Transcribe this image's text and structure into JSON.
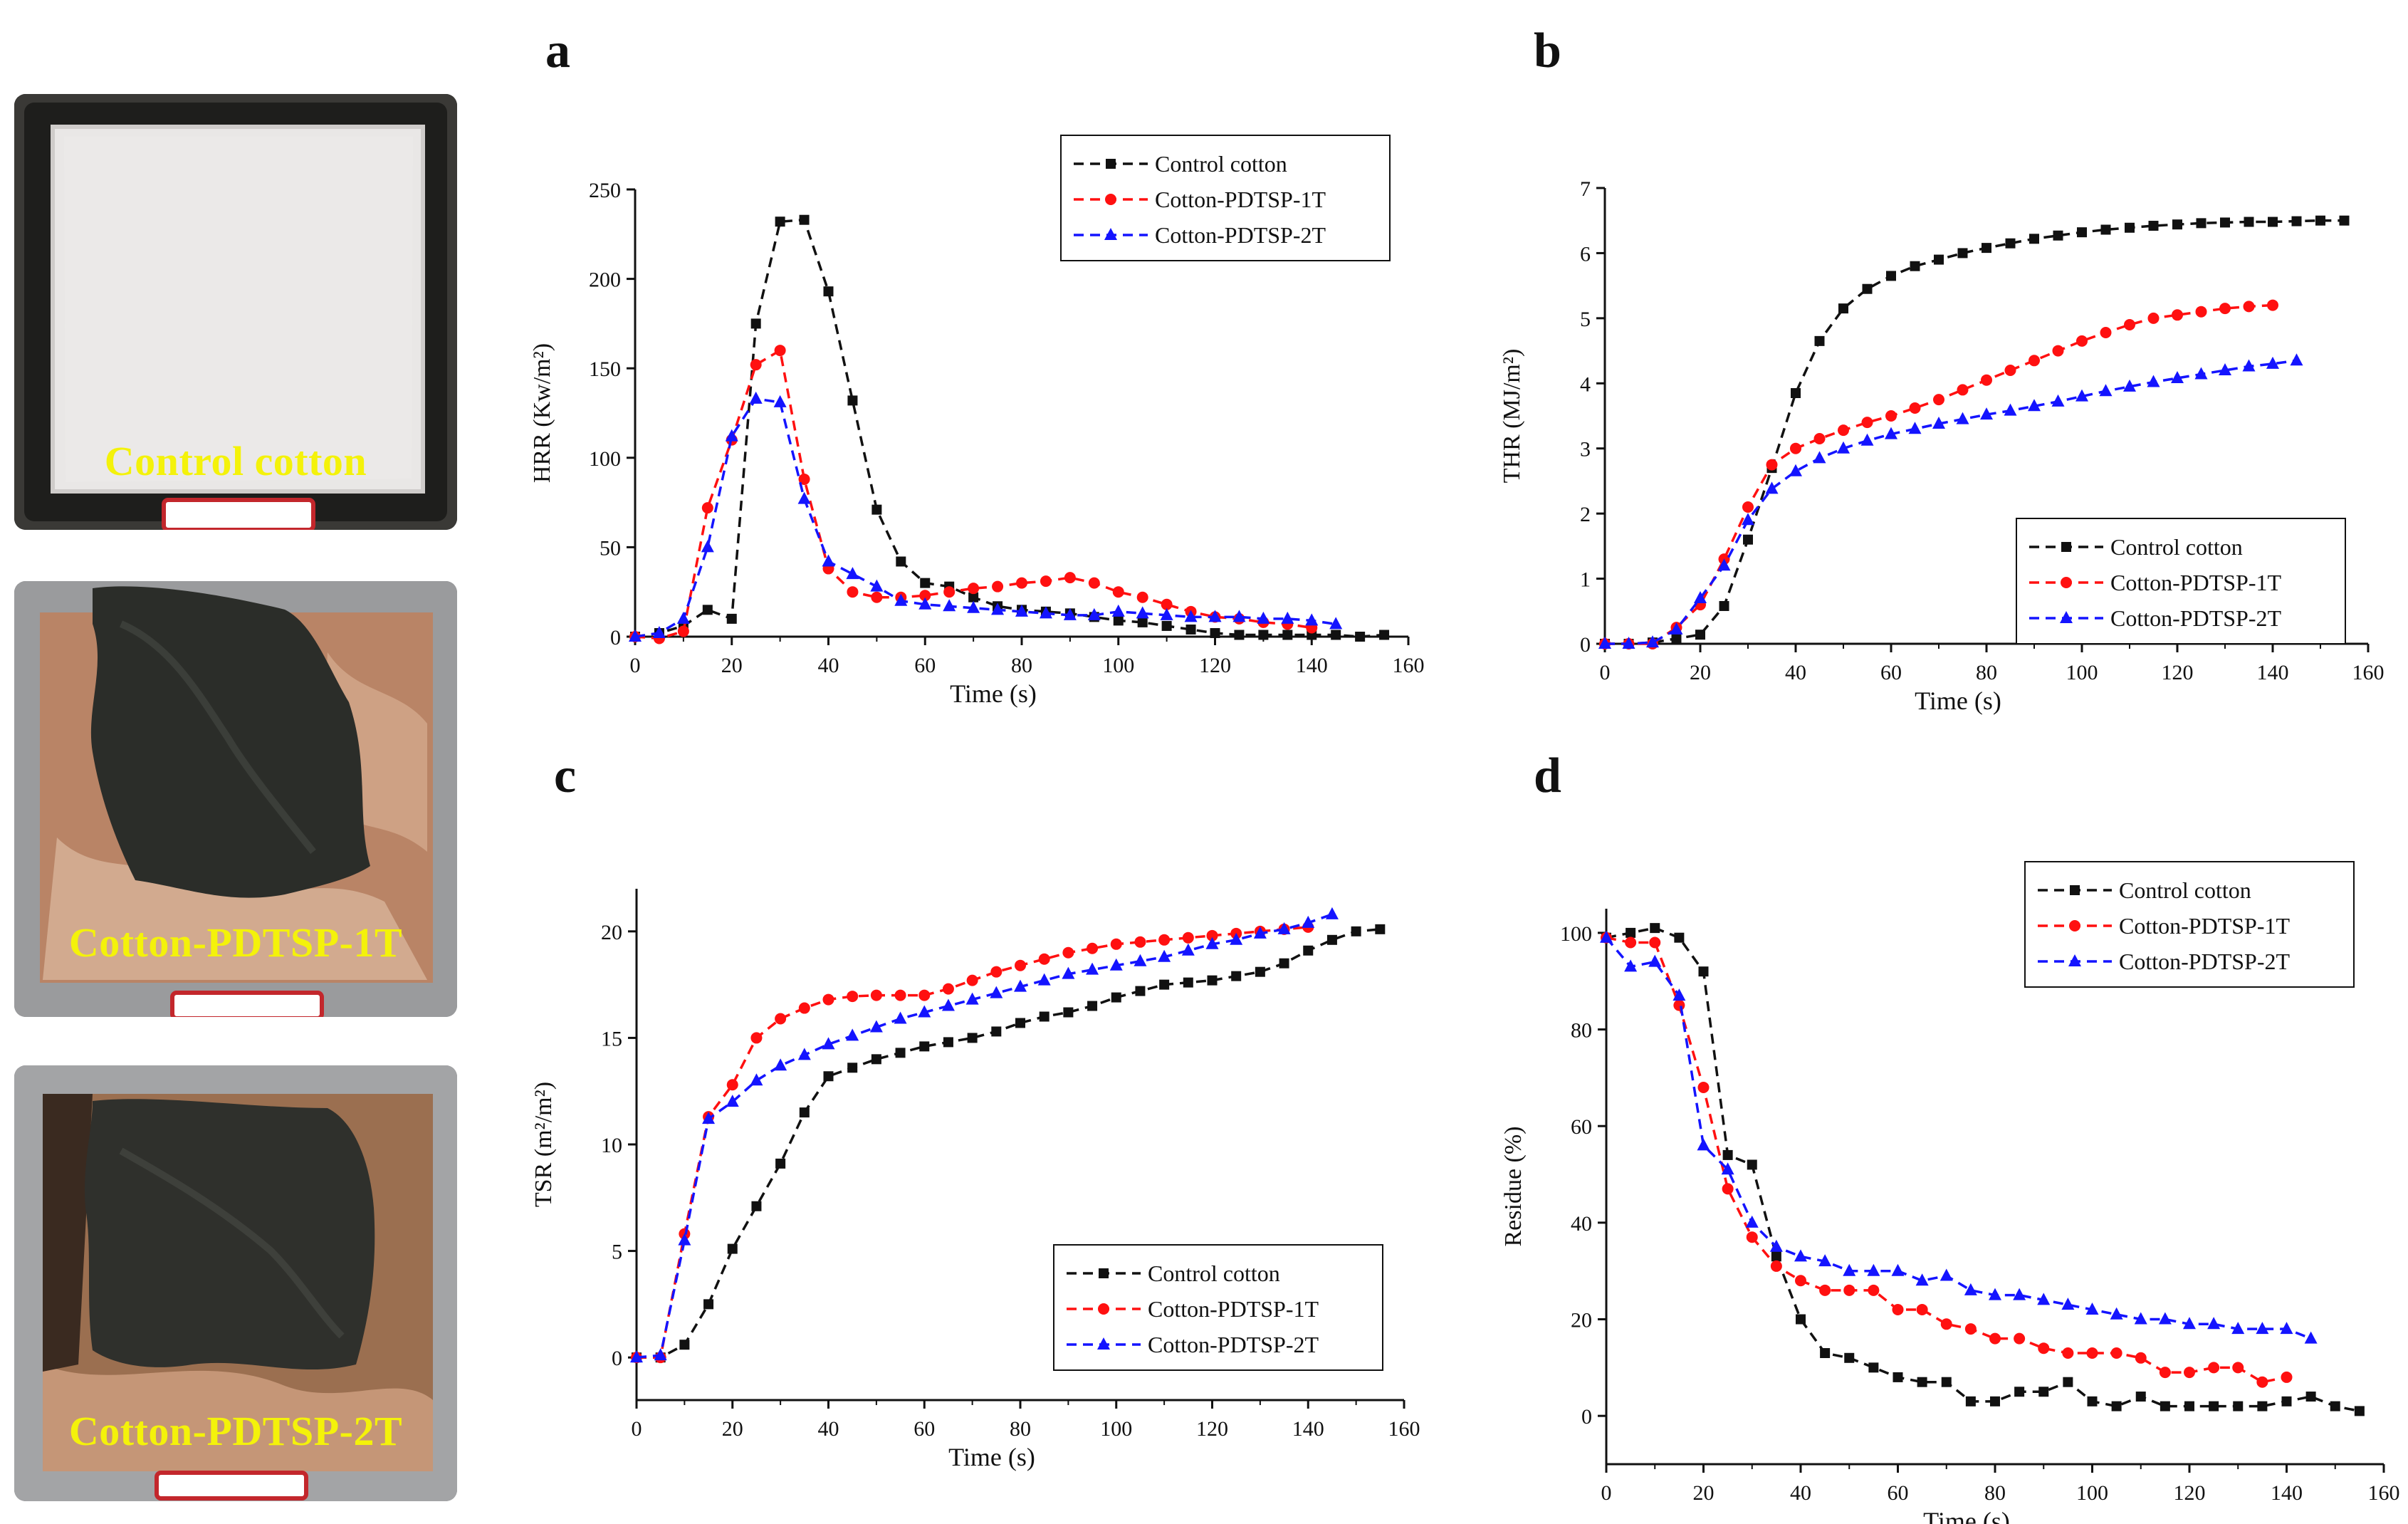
{
  "photos": [
    {
      "label": "Control cotton"
    },
    {
      "label": "Cotton-PDTSP-1T"
    },
    {
      "label": "Cotton-PDTSP-2T"
    }
  ],
  "colors": {
    "control": "#111111",
    "t1": "#ff1010",
    "t2": "#1414ff",
    "label": "#f4f20a"
  },
  "icons": {
    "control": "square-marker-icon",
    "t1": "circle-marker-icon",
    "t2": "triangle-marker-icon"
  },
  "chart_data": [
    {
      "panel": "a",
      "type": "line",
      "xlabel": "Time (s)",
      "ylabel": "HRR (Kw/m²)",
      "xlim": [
        0,
        160
      ],
      "ylim": [
        0,
        250
      ],
      "xticks": [
        0,
        20,
        40,
        60,
        80,
        100,
        120,
        140,
        160
      ],
      "yticks": [
        0,
        50,
        100,
        150,
        200,
        250
      ],
      "legend_position": "top-right",
      "series": [
        {
          "name": "Control cotton",
          "marker": "square",
          "x": [
            0,
            5,
            10,
            15,
            20,
            25,
            30,
            35,
            40,
            45,
            50,
            55,
            60,
            65,
            70,
            75,
            80,
            85,
            90,
            95,
            100,
            105,
            110,
            115,
            120,
            125,
            130,
            135,
            140,
            145,
            150,
            155
          ],
          "y": [
            0,
            2,
            6,
            15,
            10,
            175,
            232,
            233,
            193,
            132,
            71,
            42,
            30,
            28,
            22,
            17,
            15,
            14,
            13,
            11,
            9,
            8,
            6,
            4,
            2,
            1,
            1,
            1,
            1,
            1,
            0,
            1
          ]
        },
        {
          "name": "Cotton-PDTSP-1T",
          "marker": "circle",
          "x": [
            0,
            5,
            10,
            15,
            20,
            25,
            30,
            35,
            40,
            45,
            50,
            55,
            60,
            65,
            70,
            75,
            80,
            85,
            90,
            95,
            100,
            105,
            110,
            115,
            120,
            125,
            130,
            135,
            140
          ],
          "y": [
            0,
            -1,
            3,
            72,
            110,
            152,
            160,
            88,
            38,
            25,
            22,
            22,
            23,
            25,
            27,
            28,
            30,
            31,
            33,
            30,
            25,
            22,
            18,
            14,
            11,
            10,
            8,
            7,
            5
          ]
        },
        {
          "name": "Cotton-PDTSP-2T",
          "marker": "triangle",
          "x": [
            0,
            5,
            10,
            15,
            20,
            25,
            30,
            35,
            40,
            45,
            50,
            55,
            60,
            65,
            70,
            75,
            80,
            85,
            90,
            95,
            100,
            105,
            110,
            115,
            120,
            125,
            130,
            135,
            140,
            145
          ],
          "y": [
            0,
            2,
            10,
            50,
            112,
            133,
            131,
            77,
            42,
            35,
            28,
            20,
            18,
            17,
            16,
            15,
            14,
            13,
            12,
            12,
            14,
            13,
            12,
            11,
            11,
            11,
            10,
            10,
            9,
            7
          ]
        }
      ]
    },
    {
      "panel": "b",
      "type": "line",
      "xlabel": "Time (s)",
      "ylabel": "THR (MJ/m²)",
      "xlim": [
        0,
        160
      ],
      "ylim": [
        0,
        7
      ],
      "xticks": [
        0,
        20,
        40,
        60,
        80,
        100,
        120,
        140,
        160
      ],
      "yticks": [
        0,
        1,
        2,
        3,
        4,
        5,
        6,
        7
      ],
      "legend_position": "bottom-right",
      "series": [
        {
          "name": "Control cotton",
          "marker": "square",
          "x": [
            0,
            5,
            10,
            15,
            20,
            25,
            30,
            35,
            40,
            45,
            50,
            55,
            60,
            65,
            70,
            75,
            80,
            85,
            90,
            95,
            100,
            105,
            110,
            115,
            120,
            125,
            130,
            135,
            140,
            145,
            150,
            155
          ],
          "y": [
            0,
            0,
            0.02,
            0.08,
            0.14,
            0.58,
            1.6,
            2.7,
            3.85,
            4.65,
            5.15,
            5.45,
            5.65,
            5.8,
            5.9,
            6.0,
            6.08,
            6.15,
            6.22,
            6.27,
            6.32,
            6.36,
            6.39,
            6.42,
            6.44,
            6.46,
            6.47,
            6.48,
            6.48,
            6.49,
            6.5,
            6.5
          ]
        },
        {
          "name": "Cotton-PDTSP-1T",
          "marker": "circle",
          "x": [
            0,
            5,
            10,
            15,
            20,
            25,
            30,
            35,
            40,
            45,
            50,
            55,
            60,
            65,
            70,
            75,
            80,
            85,
            90,
            95,
            100,
            105,
            110,
            115,
            120,
            125,
            130,
            135,
            140
          ],
          "y": [
            0,
            0,
            0,
            0.25,
            0.6,
            1.3,
            2.1,
            2.75,
            3.0,
            3.15,
            3.28,
            3.4,
            3.5,
            3.62,
            3.75,
            3.9,
            4.05,
            4.2,
            4.35,
            4.5,
            4.65,
            4.78,
            4.9,
            5.0,
            5.05,
            5.1,
            5.15,
            5.18,
            5.2
          ]
        },
        {
          "name": "Cotton-PDTSP-2T",
          "marker": "triangle",
          "x": [
            0,
            5,
            10,
            15,
            20,
            25,
            30,
            35,
            40,
            45,
            50,
            55,
            60,
            65,
            70,
            75,
            80,
            85,
            90,
            95,
            100,
            105,
            110,
            115,
            120,
            125,
            130,
            135,
            140,
            145
          ],
          "y": [
            0,
            0,
            0.02,
            0.22,
            0.7,
            1.2,
            1.9,
            2.38,
            2.65,
            2.85,
            3.0,
            3.12,
            3.22,
            3.3,
            3.38,
            3.45,
            3.52,
            3.58,
            3.65,
            3.72,
            3.8,
            3.88,
            3.95,
            4.02,
            4.08,
            4.14,
            4.2,
            4.26,
            4.3,
            4.35
          ]
        }
      ]
    },
    {
      "panel": "c",
      "type": "line",
      "xlabel": "Time (s)",
      "ylabel": "TSR (m²/m²)",
      "xlim": [
        0,
        160
      ],
      "ylim": [
        -2,
        22
      ],
      "xticks": [
        0,
        20,
        40,
        60,
        80,
        100,
        120,
        140,
        160
      ],
      "yticks": [
        0,
        5,
        10,
        15,
        20
      ],
      "legend_position": "bottom-right",
      "series": [
        {
          "name": "Control cotton",
          "marker": "square",
          "x": [
            0,
            5,
            10,
            15,
            20,
            25,
            30,
            35,
            40,
            45,
            50,
            55,
            60,
            65,
            70,
            75,
            80,
            85,
            90,
            95,
            100,
            105,
            110,
            115,
            120,
            125,
            130,
            135,
            140,
            145,
            150,
            155
          ],
          "y": [
            0,
            0,
            0.6,
            2.5,
            5.1,
            7.1,
            9.1,
            11.5,
            13.2,
            13.6,
            14,
            14.3,
            14.6,
            14.8,
            15,
            15.3,
            15.7,
            16,
            16.2,
            16.5,
            16.9,
            17.2,
            17.5,
            17.6,
            17.7,
            17.9,
            18.1,
            18.5,
            19.1,
            19.6,
            20,
            20.1
          ]
        },
        {
          "name": "Cotton-PDTSP-1T",
          "marker": "circle",
          "x": [
            0,
            5,
            10,
            15,
            20,
            25,
            30,
            35,
            40,
            45,
            50,
            55,
            60,
            65,
            70,
            75,
            80,
            85,
            90,
            95,
            100,
            105,
            110,
            115,
            120,
            125,
            130,
            135,
            140
          ],
          "y": [
            0,
            0,
            5.8,
            11.3,
            12.8,
            15,
            15.9,
            16.4,
            16.8,
            16.95,
            17,
            17,
            17,
            17.3,
            17.7,
            18.1,
            18.4,
            18.7,
            19,
            19.2,
            19.4,
            19.5,
            19.6,
            19.7,
            19.8,
            19.9,
            20,
            20.1,
            20.2
          ]
        },
        {
          "name": "Cotton-PDTSP-2T",
          "marker": "triangle",
          "x": [
            0,
            5,
            10,
            15,
            20,
            25,
            30,
            35,
            40,
            45,
            50,
            55,
            60,
            65,
            70,
            75,
            80,
            85,
            90,
            95,
            100,
            105,
            110,
            115,
            120,
            125,
            130,
            135,
            140,
            145
          ],
          "y": [
            0,
            0.1,
            5.5,
            11.2,
            12,
            13,
            13.7,
            14.2,
            14.7,
            15.1,
            15.5,
            15.9,
            16.2,
            16.5,
            16.8,
            17.1,
            17.4,
            17.7,
            18,
            18.2,
            18.4,
            18.6,
            18.8,
            19.1,
            19.4,
            19.6,
            19.9,
            20.1,
            20.4,
            20.8
          ]
        }
      ]
    },
    {
      "panel": "d",
      "type": "line",
      "xlabel": "Time (s)",
      "ylabel": "Residue (%)",
      "xlim": [
        0,
        160
      ],
      "ylim": [
        -10,
        105
      ],
      "xticks": [
        0,
        20,
        40,
        60,
        80,
        100,
        120,
        140,
        160
      ],
      "yticks": [
        0,
        20,
        40,
        60,
        80,
        100
      ],
      "legend_position": "top-right",
      "series": [
        {
          "name": "Control cotton",
          "marker": "square",
          "x": [
            0,
            5,
            10,
            15,
            20,
            25,
            30,
            35,
            40,
            45,
            50,
            55,
            60,
            65,
            70,
            75,
            80,
            85,
            90,
            95,
            100,
            105,
            110,
            115,
            120,
            125,
            130,
            135,
            140,
            145,
            150,
            155
          ],
          "y": [
            99,
            100,
            101,
            99,
            92,
            54,
            52,
            33,
            20,
            13,
            12,
            10,
            8,
            7,
            7,
            3,
            3,
            5,
            5,
            7,
            3,
            2,
            4,
            2,
            2,
            2,
            2,
            2,
            3,
            4,
            2,
            1
          ]
        },
        {
          "name": "Cotton-PDTSP-1T",
          "marker": "circle",
          "x": [
            0,
            5,
            10,
            15,
            20,
            25,
            30,
            35,
            40,
            45,
            50,
            55,
            60,
            65,
            70,
            75,
            80,
            85,
            90,
            95,
            100,
            105,
            110,
            115,
            120,
            125,
            130,
            135,
            140
          ],
          "y": [
            99,
            98,
            98,
            85,
            68,
            47,
            37,
            31,
            28,
            26,
            26,
            26,
            22,
            22,
            19,
            18,
            16,
            16,
            14,
            13,
            13,
            13,
            12,
            9,
            9,
            10,
            10,
            7,
            8
          ]
        },
        {
          "name": "Cotton-PDTSP-2T",
          "marker": "triangle",
          "x": [
            0,
            5,
            10,
            15,
            20,
            25,
            30,
            35,
            40,
            45,
            50,
            55,
            60,
            65,
            70,
            75,
            80,
            85,
            90,
            95,
            100,
            105,
            110,
            115,
            120,
            125,
            130,
            135,
            140,
            145
          ],
          "y": [
            99,
            93,
            94,
            87,
            56,
            51,
            40,
            35,
            33,
            32,
            30,
            30,
            30,
            28,
            29,
            26,
            25,
            25,
            24,
            23,
            22,
            21,
            20,
            20,
            19,
            19,
            18,
            18,
            18,
            16
          ]
        }
      ]
    }
  ]
}
